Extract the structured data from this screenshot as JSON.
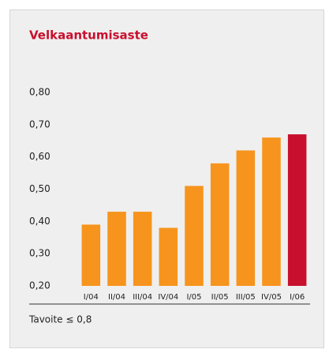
{
  "chart_data": {
    "type": "bar",
    "title": "Velkaantumisaste",
    "categories": [
      "I/04",
      "II/04",
      "III/04",
      "IV/04",
      "I/05",
      "II/05",
      "III/05",
      "IV/05",
      "I/06"
    ],
    "values": [
      0.39,
      0.43,
      0.43,
      0.38,
      0.51,
      0.58,
      0.62,
      0.66,
      0.67
    ],
    "colors": [
      "#f7941d",
      "#f7941d",
      "#f7941d",
      "#f7941d",
      "#f7941d",
      "#f7941d",
      "#f7941d",
      "#f7941d",
      "#c8102e"
    ],
    "ylim": [
      0.2,
      0.8
    ],
    "yticks": [
      {
        "value": 0.2,
        "label": "0,20"
      },
      {
        "value": 0.3,
        "label": "0,30"
      },
      {
        "value": 0.4,
        "label": "0,40"
      },
      {
        "value": 0.5,
        "label": "0,50"
      },
      {
        "value": 0.6,
        "label": "0,60"
      },
      {
        "value": 0.7,
        "label": "0,70"
      },
      {
        "value": 0.8,
        "label": "0,80"
      }
    ],
    "grid": false,
    "annotation": "Tavoite ≤ 0,8"
  }
}
